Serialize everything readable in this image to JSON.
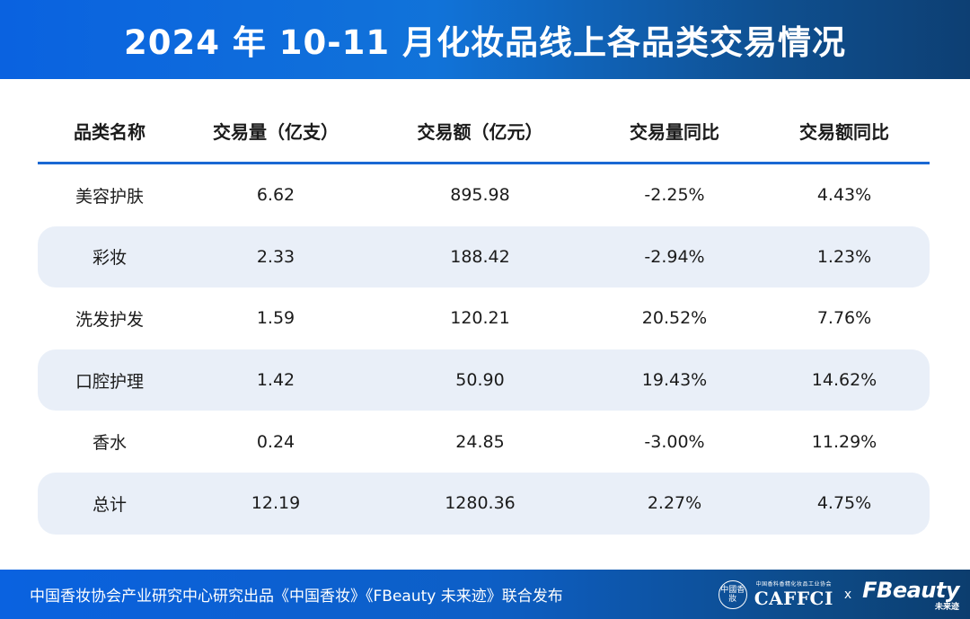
{
  "header": {
    "title": "2024 年 10-11 月化妆品线上各品类交易情况"
  },
  "table": {
    "columns": [
      "品类名称",
      "交易量（亿支）",
      "交易额（亿元）",
      "交易量同比",
      "交易额同比"
    ],
    "rows": [
      [
        "美容护肤",
        "6.62",
        "895.98",
        "-2.25%",
        "4.43%"
      ],
      [
        "彩妆",
        "2.33",
        "188.42",
        "-2.94%",
        "1.23%"
      ],
      [
        "洗发护发",
        "1.59",
        "120.21",
        "20.52%",
        "7.76%"
      ],
      [
        "口腔护理",
        "1.42",
        "50.90",
        "19.43%",
        "14.62%"
      ],
      [
        "香水",
        "0.24",
        "24.85",
        "-3.00%",
        "11.29%"
      ],
      [
        "总计",
        "12.19",
        "1280.36",
        "2.27%",
        "4.75%"
      ]
    ]
  },
  "footer": {
    "text": "中国香妆协会产业研究中心研究出品《中国香妆》《FBeauty 未来迹》联合发布",
    "logo_seal": "中國香妝",
    "logo_caffci_small": "中国香料香精化妆品工业协会",
    "logo_caffci": "CAFFCI",
    "separator": "x",
    "logo_fbeauty": "FBeauty",
    "logo_fbeauty_sub": "未来迹"
  },
  "colors": {
    "header_start": "#0a62e0",
    "header_end": "#0d3f73",
    "row_band": "#e9eff8",
    "header_rule": "#1a68d3"
  }
}
